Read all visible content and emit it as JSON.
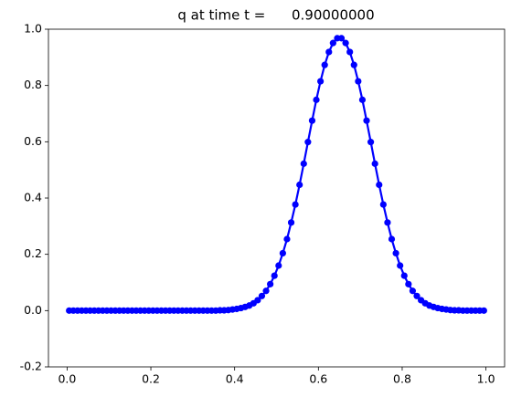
{
  "chart_data": {
    "type": "line",
    "title": "q at time t =      0.90000000",
    "x": [
      0.005,
      0.015,
      0.025,
      0.035,
      0.045,
      0.055,
      0.065,
      0.075,
      0.085,
      0.095,
      0.105,
      0.115,
      0.125,
      0.135,
      0.145,
      0.155,
      0.165,
      0.175,
      0.185,
      0.195,
      0.205,
      0.215,
      0.225,
      0.235,
      0.245,
      0.255,
      0.265,
      0.275,
      0.285,
      0.295,
      0.305,
      0.315,
      0.325,
      0.335,
      0.345,
      0.355,
      0.365,
      0.375,
      0.385,
      0.395,
      0.405,
      0.415,
      0.425,
      0.435,
      0.445,
      0.455,
      0.465,
      0.475,
      0.485,
      0.495,
      0.505,
      0.515,
      0.525,
      0.535,
      0.545,
      0.555,
      0.565,
      0.575,
      0.585,
      0.595,
      0.605,
      0.615,
      0.625,
      0.635,
      0.645,
      0.655,
      0.665,
      0.675,
      0.685,
      0.695,
      0.705,
      0.715,
      0.725,
      0.735,
      0.745,
      0.755,
      0.765,
      0.775,
      0.785,
      0.795,
      0.805,
      0.815,
      0.825,
      0.835,
      0.845,
      0.855,
      0.865,
      0.875,
      0.885,
      0.895,
      0.905,
      0.915,
      0.925,
      0.935,
      0.945,
      0.955,
      0.965,
      0.975,
      0.985,
      0.995
    ],
    "series": [
      {
        "name": "q",
        "color": "#0000ff",
        "values": [
          0,
          0,
          0,
          0,
          0,
          0,
          0,
          0,
          0,
          0,
          0,
          0,
          0,
          0,
          0,
          0,
          0,
          0,
          0,
          0,
          0,
          0,
          0,
          0,
          0,
          0,
          0,
          0,
          0,
          0,
          0,
          0,
          0,
          0,
          0,
          0,
          0.001,
          0.001,
          0.002,
          0.004,
          0.006,
          0.009,
          0.013,
          0.018,
          0.026,
          0.037,
          0.052,
          0.07,
          0.094,
          0.124,
          0.16,
          0.204,
          0.254,
          0.313,
          0.377,
          0.447,
          0.522,
          0.599,
          0.675,
          0.749,
          0.815,
          0.873,
          0.919,
          0.951,
          0.968,
          0.968,
          0.951,
          0.919,
          0.873,
          0.815,
          0.749,
          0.675,
          0.599,
          0.522,
          0.447,
          0.377,
          0.313,
          0.254,
          0.204,
          0.16,
          0.124,
          0.094,
          0.07,
          0.052,
          0.037,
          0.026,
          0.018,
          0.013,
          0.009,
          0.006,
          0.004,
          0.002,
          0.001,
          0.001,
          0,
          0,
          0,
          0,
          0,
          0
        ]
      }
    ],
    "xlim": [
      -0.0445,
      1.0445
    ],
    "ylim": [
      -0.2,
      1.0
    ],
    "xticks": [
      {
        "value": 0,
        "label": "0.0"
      },
      {
        "value": 0.2,
        "label": "0.2"
      },
      {
        "value": 0.4,
        "label": "0.4"
      },
      {
        "value": 0.6,
        "label": "0.6"
      },
      {
        "value": 0.8,
        "label": "0.8"
      },
      {
        "value": 1,
        "label": "1.0"
      }
    ],
    "yticks": [
      {
        "value": -0.2,
        "label": "-0.2"
      },
      {
        "value": 0,
        "label": "0.0"
      },
      {
        "value": 0.2,
        "label": "0.2"
      },
      {
        "value": 0.4,
        "label": "0.4"
      },
      {
        "value": 0.6,
        "label": "0.6"
      },
      {
        "value": 0.8,
        "label": "0.8"
      },
      {
        "value": 1,
        "label": "1.0"
      }
    ],
    "grid": false
  }
}
